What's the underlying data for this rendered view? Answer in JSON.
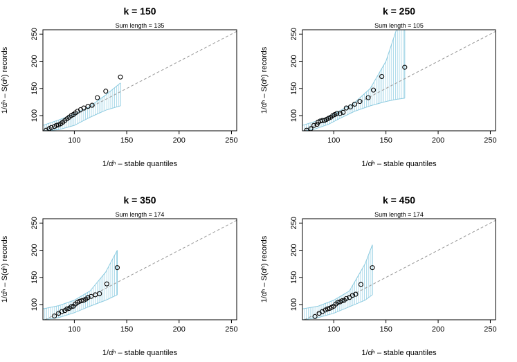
{
  "chart_data": [
    {
      "type": "scatter",
      "title": "k = 150",
      "subtitle": "Sum length = 135",
      "xlabel": "1/α̂ⁿ – stable quantiles",
      "ylabel": "1/α̂ⁿ – S(α̂ⁿ) records",
      "xlim": [
        70,
        255
      ],
      "ylim": [
        72,
        258
      ],
      "xticks": [
        100,
        150,
        200,
        250
      ],
      "yticks": [
        100,
        150,
        200,
        250
      ],
      "reference_line": "y = x (dashed)",
      "points": [
        [
          73,
          73
        ],
        [
          76,
          76
        ],
        [
          78,
          78
        ],
        [
          81,
          80
        ],
        [
          83,
          82
        ],
        [
          85,
          83
        ],
        [
          87,
          85
        ],
        [
          89,
          88
        ],
        [
          91,
          91
        ],
        [
          93,
          94
        ],
        [
          95,
          97
        ],
        [
          97,
          100
        ],
        [
          99,
          102
        ],
        [
          101,
          105
        ],
        [
          103,
          108
        ],
        [
          106,
          111
        ],
        [
          109,
          114
        ],
        [
          113,
          117
        ],
        [
          117,
          119
        ],
        [
          122,
          133
        ],
        [
          130,
          145
        ],
        [
          144,
          171
        ]
      ],
      "band": {
        "x": [
          70,
          85,
          100,
          115,
          130,
          144
        ],
        "lower": [
          72,
          74,
          82,
          97,
          110,
          118
        ],
        "upper": [
          82,
          92,
          103,
          117,
          138,
          160
        ]
      }
    },
    {
      "type": "scatter",
      "title": "k = 250",
      "subtitle": "Sum length = 105",
      "xlabel": "1/α̂ⁿ – stable quantiles",
      "ylabel": "1/α̂ⁿ – S(α̂ⁿ) records",
      "xlim": [
        70,
        255
      ],
      "ylim": [
        72,
        258
      ],
      "xticks": [
        100,
        150,
        200,
        250
      ],
      "yticks": [
        100,
        150,
        200,
        250
      ],
      "reference_line": "y = x (dashed)",
      "points": [
        [
          74,
          73
        ],
        [
          78,
          76
        ],
        [
          81,
          82
        ],
        [
          84,
          84
        ],
        [
          85,
          88
        ],
        [
          87,
          90
        ],
        [
          89,
          91
        ],
        [
          91,
          91
        ],
        [
          93,
          93
        ],
        [
          95,
          95
        ],
        [
          97,
          97
        ],
        [
          99,
          100
        ],
        [
          101,
          102
        ],
        [
          103,
          104
        ],
        [
          106,
          104
        ],
        [
          109,
          106
        ],
        [
          112,
          114
        ],
        [
          116,
          116
        ],
        [
          120,
          121
        ],
        [
          125,
          126
        ],
        [
          133,
          133
        ],
        [
          138,
          147
        ],
        [
          146,
          172
        ],
        [
          168,
          189
        ]
      ],
      "band": {
        "x": [
          70,
          80,
          95,
          105,
          120,
          135,
          150,
          160,
          168
        ],
        "lower": [
          72,
          74,
          84,
          94,
          108,
          118,
          126,
          130,
          132
        ],
        "upper": [
          82,
          88,
          98,
          108,
          124,
          150,
          200,
          258,
          258
        ]
      }
    },
    {
      "type": "scatter",
      "title": "k = 350",
      "subtitle": "Sum length = 174",
      "xlabel": "1/α̂ⁿ – stable quantiles",
      "ylabel": "1/α̂ⁿ – S(α̂ⁿ) records",
      "xlim": [
        70,
        255
      ],
      "ylim": [
        72,
        258
      ],
      "xticks": [
        100,
        150,
        200,
        250
      ],
      "yticks": [
        100,
        150,
        200,
        250
      ],
      "reference_line": "y = x (dashed)",
      "points": [
        [
          81,
          79
        ],
        [
          85,
          84
        ],
        [
          88,
          87
        ],
        [
          91,
          89
        ],
        [
          93,
          92
        ],
        [
          95,
          93
        ],
        [
          97,
          96
        ],
        [
          99,
          97
        ],
        [
          101,
          101
        ],
        [
          103,
          104
        ],
        [
          105,
          106
        ],
        [
          107,
          107
        ],
        [
          109,
          108
        ],
        [
          111,
          110
        ],
        [
          113,
          113
        ],
        [
          116,
          115
        ],
        [
          120,
          118
        ],
        [
          124,
          120
        ],
        [
          131,
          138
        ],
        [
          141,
          168
        ]
      ],
      "band": {
        "x": [
          70,
          85,
          100,
          115,
          130,
          141
        ],
        "lower": [
          72,
          76,
          85,
          97,
          108,
          118
        ],
        "upper": [
          92,
          98,
          108,
          125,
          160,
          200
        ]
      }
    },
    {
      "type": "scatter",
      "title": "k = 450",
      "subtitle": "Sum length = 174",
      "xlabel": "1/α̂ⁿ – stable quantiles",
      "ylabel": "1/α̂ⁿ – S(α̂ⁿ) records",
      "xlim": [
        70,
        255
      ],
      "ylim": [
        72,
        258
      ],
      "xticks": [
        100,
        150,
        200,
        250
      ],
      "yticks": [
        100,
        150,
        200,
        250
      ],
      "reference_line": "y = x (dashed)",
      "points": [
        [
          82,
          78
        ],
        [
          86,
          84
        ],
        [
          89,
          87
        ],
        [
          92,
          90
        ],
        [
          94,
          92
        ],
        [
          96,
          93
        ],
        [
          98,
          95
        ],
        [
          100,
          97
        ],
        [
          102,
          101
        ],
        [
          104,
          104
        ],
        [
          106,
          105
        ],
        [
          108,
          107
        ],
        [
          110,
          108
        ],
        [
          112,
          111
        ],
        [
          115,
          113
        ],
        [
          118,
          117
        ],
        [
          121,
          119
        ],
        [
          126,
          137
        ],
        [
          137,
          168
        ]
      ],
      "band": {
        "x": [
          70,
          85,
          100,
          115,
          130,
          137
        ],
        "lower": [
          72,
          76,
          84,
          96,
          108,
          118
        ],
        "upper": [
          92,
          97,
          108,
          125,
          175,
          210
        ]
      }
    }
  ]
}
